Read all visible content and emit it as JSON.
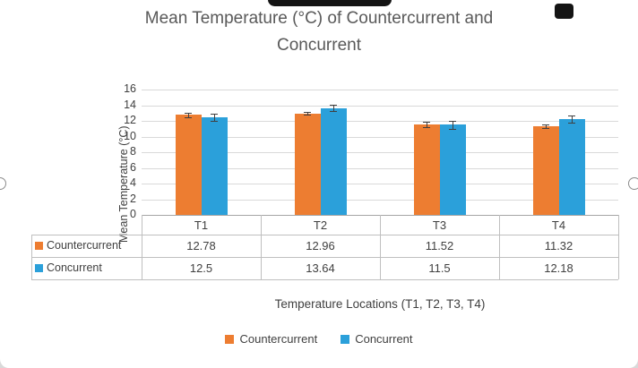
{
  "chart_data": {
    "type": "bar",
    "title": "Mean Temperature (°C) of Countercurrent and Concurrent",
    "categories": [
      "T1",
      "T2",
      "T3",
      "T4"
    ],
    "series": [
      {
        "name": "Countercurrent",
        "color": "#ED7D31",
        "values": [
          12.78,
          12.96,
          11.52,
          11.32
        ],
        "errors": [
          0.3,
          0.2,
          0.35,
          0.2
        ]
      },
      {
        "name": "Concurrent",
        "color": "#2BA0DA",
        "values": [
          12.5,
          13.64,
          11.5,
          12.18
        ],
        "errors": [
          0.45,
          0.4,
          0.55,
          0.45
        ]
      }
    ],
    "xlabel": "Temperature Locations (T1, T2, T3, T4)",
    "ylabel": "Mean Temperature (°C)",
    "ylim": [
      0,
      16
    ],
    "ytick_step": 2,
    "grid": true,
    "legend_position": "bottom",
    "show_data_table": true
  },
  "style": {
    "title_color": "#595959",
    "axis_text_color": "#404040",
    "gridline_color": "#D9D9D9",
    "axis_line_color": "#A6A6A6",
    "table_border_color": "#BFBFBF"
  }
}
